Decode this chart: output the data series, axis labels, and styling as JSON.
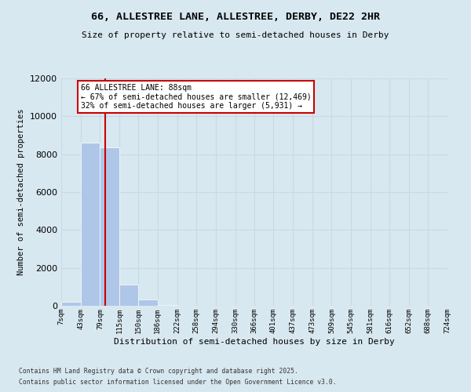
{
  "title_line1": "66, ALLESTREE LANE, ALLESTREE, DERBY, DE22 2HR",
  "title_line2": "Size of property relative to semi-detached houses in Derby",
  "xlabel": "Distribution of semi-detached houses by size in Derby",
  "ylabel": "Number of semi-detached properties",
  "property_size": 88,
  "property_label": "66 ALLESTREE LANE: 88sqm",
  "pct_smaller": 67,
  "count_smaller": 12469,
  "pct_larger": 32,
  "count_larger": 5931,
  "bar_color": "#aec6e8",
  "property_line_color": "#cc0000",
  "annotation_box_color": "#cc0000",
  "grid_color": "#c8d8e8",
  "bg_color": "#d8e8f0",
  "plot_bg_color": "#d8e8f0",
  "ylim": [
    0,
    12000
  ],
  "yticks": [
    0,
    2000,
    4000,
    6000,
    8000,
    10000,
    12000
  ],
  "bin_edges": [
    7,
    43,
    79,
    115,
    150,
    186,
    222,
    258,
    294,
    330,
    366,
    401,
    437,
    473,
    509,
    545,
    581,
    616,
    652,
    688,
    724
  ],
  "bin_labels": [
    "7sqm",
    "43sqm",
    "79sqm",
    "115sqm",
    "150sqm",
    "186sqm",
    "222sqm",
    "258sqm",
    "294sqm",
    "330sqm",
    "366sqm",
    "401sqm",
    "437sqm",
    "473sqm",
    "509sqm",
    "545sqm",
    "581sqm",
    "616sqm",
    "652sqm",
    "688sqm",
    "724sqm"
  ],
  "bar_heights": [
    200,
    8600,
    8350,
    1100,
    350,
    50,
    0,
    0,
    0,
    0,
    0,
    0,
    0,
    0,
    0,
    0,
    0,
    0,
    0,
    0
  ],
  "footer_line1": "Contains HM Land Registry data © Crown copyright and database right 2025.",
  "footer_line2": "Contains public sector information licensed under the Open Government Licence v3.0."
}
